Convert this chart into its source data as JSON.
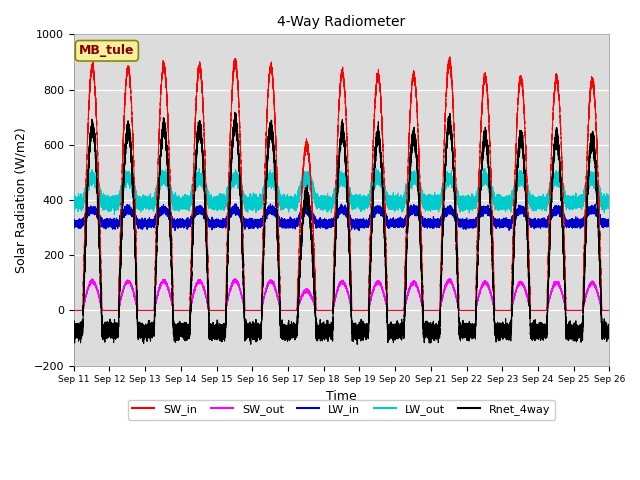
{
  "title": "4-Way Radiometer",
  "xlabel": "Time",
  "ylabel": "Solar Radiation (W/m2)",
  "ylim": [
    -200,
    1000
  ],
  "xlim": [
    0,
    21600
  ],
  "bg_color": "#dcdcdc",
  "site_label": "MB_tule",
  "site_label_facecolor": "#f5f0a0",
  "site_label_edgecolor": "#888800",
  "site_label_text_color": "#880000",
  "tick_labels": [
    "Sep 11",
    "Sep 12",
    "Sep 13",
    "Sep 14",
    "Sep 15",
    "Sep 16",
    "Sep 17",
    "Sep 18",
    "Sep 19",
    "Sep 20",
    "Sep 21",
    "Sep 22",
    "Sep 23",
    "Sep 24",
    "Sep 25",
    "Sep 26"
  ],
  "tick_positions": [
    0,
    1440,
    2880,
    4320,
    5760,
    7200,
    8640,
    10080,
    11520,
    12960,
    14400,
    15840,
    17280,
    18720,
    20160,
    21600
  ],
  "colors": {
    "SW_in": "#ff0000",
    "SW_out": "#ff00ff",
    "LW_in": "#0000cc",
    "LW_out": "#00cccc",
    "Rnet_4way": "#000000"
  },
  "yticks": [
    -200,
    0,
    200,
    400,
    600,
    800,
    1000
  ],
  "SW_in_peaks": [
    880,
    875,
    885,
    880,
    900,
    880,
    600,
    860,
    850,
    850,
    900,
    845,
    840,
    840,
    830
  ],
  "minutes_per_day": 1440,
  "n_days": 15,
  "n_pts_per_min": 1
}
